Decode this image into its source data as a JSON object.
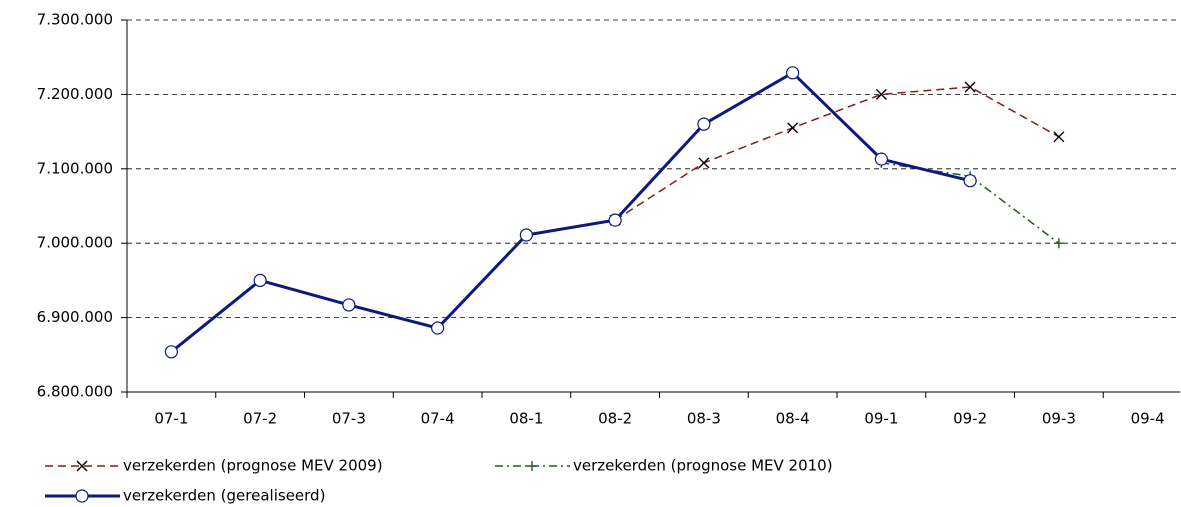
{
  "chart_data": {
    "type": "line",
    "categories": [
      "07-1",
      "07-2",
      "07-3",
      "07-4",
      "08-1",
      "08-2",
      "08-3",
      "08-4",
      "09-1",
      "09-2",
      "09-3",
      "09-4"
    ],
    "series": [
      {
        "name": "verzekerden (prognose MEV 2009)",
        "color": "#8b1a1a",
        "dash": "8,5",
        "marker": "x",
        "values": [
          null,
          null,
          null,
          null,
          null,
          7031000,
          7108000,
          7155000,
          7200000,
          7210000,
          7143000,
          null
        ]
      },
      {
        "name": "verzekerden (prognose MEV 2010)",
        "color": "#1e5e1e",
        "dash": "8,4,2,4",
        "marker": "plus",
        "values": [
          null,
          null,
          null,
          null,
          null,
          null,
          null,
          null,
          7108000,
          7090000,
          7000000,
          null
        ]
      },
      {
        "name": "verzekerden (gerealiseerd)",
        "color": "#0b1a80",
        "dash": "",
        "marker": "circle",
        "values": [
          6854000,
          6950000,
          6917000,
          6886000,
          7011000,
          7031000,
          7160000,
          7229000,
          7113000,
          7084000,
          null,
          null
        ]
      }
    ],
    "ylim": [
      6800000,
      7300000
    ],
    "yticks": [
      {
        "value": 6800000,
        "label": "6.800.000"
      },
      {
        "value": 6900000,
        "label": "6.900.000"
      },
      {
        "value": 7000000,
        "label": "7.000.000"
      },
      {
        "value": 7100000,
        "label": "7.100.000"
      },
      {
        "value": 7200000,
        "label": "7.200.000"
      },
      {
        "value": 7300000,
        "label": "7.300.000"
      }
    ],
    "grid": true,
    "legend": "bottom-left"
  }
}
